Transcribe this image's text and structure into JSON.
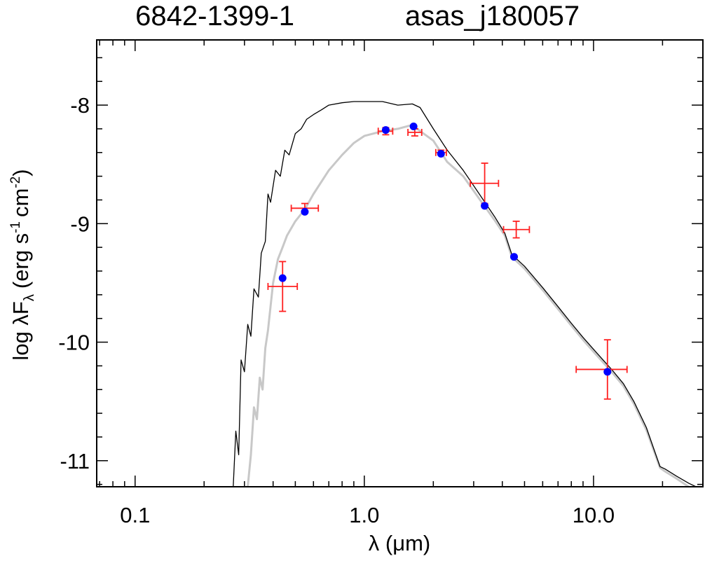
{
  "chart_data": {
    "type": "scatter",
    "title_left": "6842-1399-1",
    "title_right": "asas_j180057",
    "xlabel": {
      "prefix": "λ (",
      "unit": "μm",
      "suffix": ")"
    },
    "ylabel": {
      "log": "log λF",
      "sub_lambda": "λ",
      "open": "(erg s",
      "exp_s": "-1",
      "mid": "cm",
      "exp_cm": "-2",
      "close": ")"
    },
    "x_scale": "log",
    "xlim": [
      0.068,
      30.0
    ],
    "ylim": [
      -11.22,
      -7.45
    ],
    "x_ticks": [
      {
        "value": 0.1,
        "label": "0.1"
      },
      {
        "value": 1.0,
        "label": "1.0"
      },
      {
        "value": 10.0,
        "label": "10.0"
      }
    ],
    "y_ticks": [
      {
        "value": -8,
        "label": "-8"
      },
      {
        "value": -9,
        "label": "-9"
      },
      {
        "value": -10,
        "label": "-10"
      },
      {
        "value": -11,
        "label": "-11"
      }
    ],
    "observed": [
      {
        "x": 0.44,
        "y": -9.53,
        "xlo": 0.38,
        "xhi": 0.51,
        "yerr": 0.21
      },
      {
        "x": 0.55,
        "y": -8.87,
        "xlo": 0.48,
        "xhi": 0.63,
        "yerr": 0.04
      },
      {
        "x": 1.24,
        "y": -8.22,
        "xlo": 1.15,
        "xhi": 1.33,
        "yerr": 0.03
      },
      {
        "x": 1.66,
        "y": -8.23,
        "xlo": 1.55,
        "xhi": 1.78,
        "yerr": 0.03
      },
      {
        "x": 2.16,
        "y": -8.4,
        "xlo": 2.05,
        "xhi": 2.28,
        "yerr": 0.02
      },
      {
        "x": 3.35,
        "y": -8.66,
        "xlo": 2.9,
        "xhi": 3.85,
        "yerr": 0.17
      },
      {
        "x": 4.6,
        "y": -9.05,
        "xlo": 4.05,
        "xhi": 5.25,
        "yerr": 0.07
      },
      {
        "x": 11.5,
        "y": -10.23,
        "xlo": 8.4,
        "xhi": 14.0,
        "yerr": 0.25
      }
    ],
    "model_points": [
      {
        "x": 0.44,
        "y": -9.46
      },
      {
        "x": 0.55,
        "y": -8.9
      },
      {
        "x": 1.24,
        "y": -8.21
      },
      {
        "x": 1.64,
        "y": -8.18
      },
      {
        "x": 2.16,
        "y": -8.41
      },
      {
        "x": 3.35,
        "y": -8.85
      },
      {
        "x": 4.5,
        "y": -9.28
      },
      {
        "x": 11.5,
        "y": -10.25
      }
    ],
    "model_spectrum": [
      [
        0.268,
        -11.22
      ],
      [
        0.275,
        -10.75
      ],
      [
        0.283,
        -10.95
      ],
      [
        0.29,
        -10.15
      ],
      [
        0.3,
        -10.25
      ],
      [
        0.31,
        -9.85
      ],
      [
        0.32,
        -9.95
      ],
      [
        0.33,
        -9.55
      ],
      [
        0.345,
        -9.62
      ],
      [
        0.355,
        -9.25
      ],
      [
        0.37,
        -9.15
      ],
      [
        0.38,
        -8.75
      ],
      [
        0.39,
        -8.82
      ],
      [
        0.41,
        -8.55
      ],
      [
        0.43,
        -8.6
      ],
      [
        0.45,
        -8.38
      ],
      [
        0.47,
        -8.42
      ],
      [
        0.5,
        -8.24
      ],
      [
        0.53,
        -8.2
      ],
      [
        0.56,
        -8.12
      ],
      [
        0.6,
        -8.08
      ],
      [
        0.65,
        -8.04
      ],
      [
        0.7,
        -8.0
      ],
      [
        0.8,
        -7.98
      ],
      [
        0.9,
        -7.97
      ],
      [
        1.0,
        -7.97
      ],
      [
        1.2,
        -7.97
      ],
      [
        1.4,
        -8.0
      ],
      [
        1.62,
        -7.99
      ],
      [
        1.75,
        -8.02
      ],
      [
        2.0,
        -8.2
      ],
      [
        2.3,
        -8.38
      ],
      [
        2.7,
        -8.55
      ],
      [
        3.2,
        -8.76
      ],
      [
        3.7,
        -8.94
      ],
      [
        4.1,
        -9.08
      ],
      [
        4.4,
        -9.26
      ],
      [
        5.0,
        -9.36
      ],
      [
        6.0,
        -9.54
      ],
      [
        7.0,
        -9.7
      ],
      [
        8.0,
        -9.84
      ],
      [
        9.0,
        -9.96
      ],
      [
        10.0,
        -10.06
      ],
      [
        11.0,
        -10.15
      ],
      [
        12.0,
        -10.23
      ],
      [
        13.5,
        -10.35
      ],
      [
        15.0,
        -10.5
      ],
      [
        17.0,
        -10.72
      ],
      [
        19.5,
        -11.05
      ],
      [
        20.5,
        -11.07
      ],
      [
        23.0,
        -11.13
      ],
      [
        26.0,
        -11.19
      ],
      [
        28.0,
        -11.22
      ]
    ],
    "photosphere_spectrum": [
      [
        0.31,
        -11.22
      ],
      [
        0.32,
        -10.95
      ],
      [
        0.33,
        -10.55
      ],
      [
        0.34,
        -10.65
      ],
      [
        0.35,
        -10.3
      ],
      [
        0.36,
        -10.4
      ],
      [
        0.37,
        -10.05
      ],
      [
        0.38,
        -9.9
      ],
      [
        0.4,
        -9.5
      ],
      [
        0.42,
        -9.3
      ],
      [
        0.44,
        -9.2
      ],
      [
        0.46,
        -9.1
      ],
      [
        0.5,
        -8.98
      ],
      [
        0.55,
        -8.88
      ],
      [
        0.6,
        -8.75
      ],
      [
        0.7,
        -8.55
      ],
      [
        0.8,
        -8.42
      ],
      [
        0.9,
        -8.32
      ],
      [
        1.0,
        -8.26
      ],
      [
        1.2,
        -8.22
      ],
      [
        1.4,
        -8.2
      ],
      [
        1.6,
        -8.17
      ],
      [
        1.7,
        -8.2
      ],
      [
        2.0,
        -8.3
      ],
      [
        2.3,
        -8.48
      ],
      [
        2.7,
        -8.6
      ],
      [
        3.2,
        -8.8
      ],
      [
        3.7,
        -8.97
      ],
      [
        4.1,
        -9.1
      ],
      [
        4.4,
        -9.28
      ],
      [
        5.0,
        -9.38
      ],
      [
        6.0,
        -9.56
      ],
      [
        7.0,
        -9.72
      ],
      [
        8.0,
        -9.86
      ],
      [
        9.0,
        -9.98
      ],
      [
        10.0,
        -10.08
      ],
      [
        11.0,
        -10.17
      ],
      [
        12.0,
        -10.25
      ],
      [
        13.5,
        -10.37
      ],
      [
        15.0,
        -10.52
      ],
      [
        17.0,
        -10.74
      ],
      [
        19.5,
        -11.06
      ],
      [
        20.5,
        -11.09
      ],
      [
        23.0,
        -11.15
      ],
      [
        26.0,
        -11.22
      ]
    ],
    "colors": {
      "axes": "#000000",
      "model": "#000000",
      "photosphere": "#c8c8c8",
      "errorbar": "#ff2020",
      "model_point": "#0000ff"
    }
  }
}
